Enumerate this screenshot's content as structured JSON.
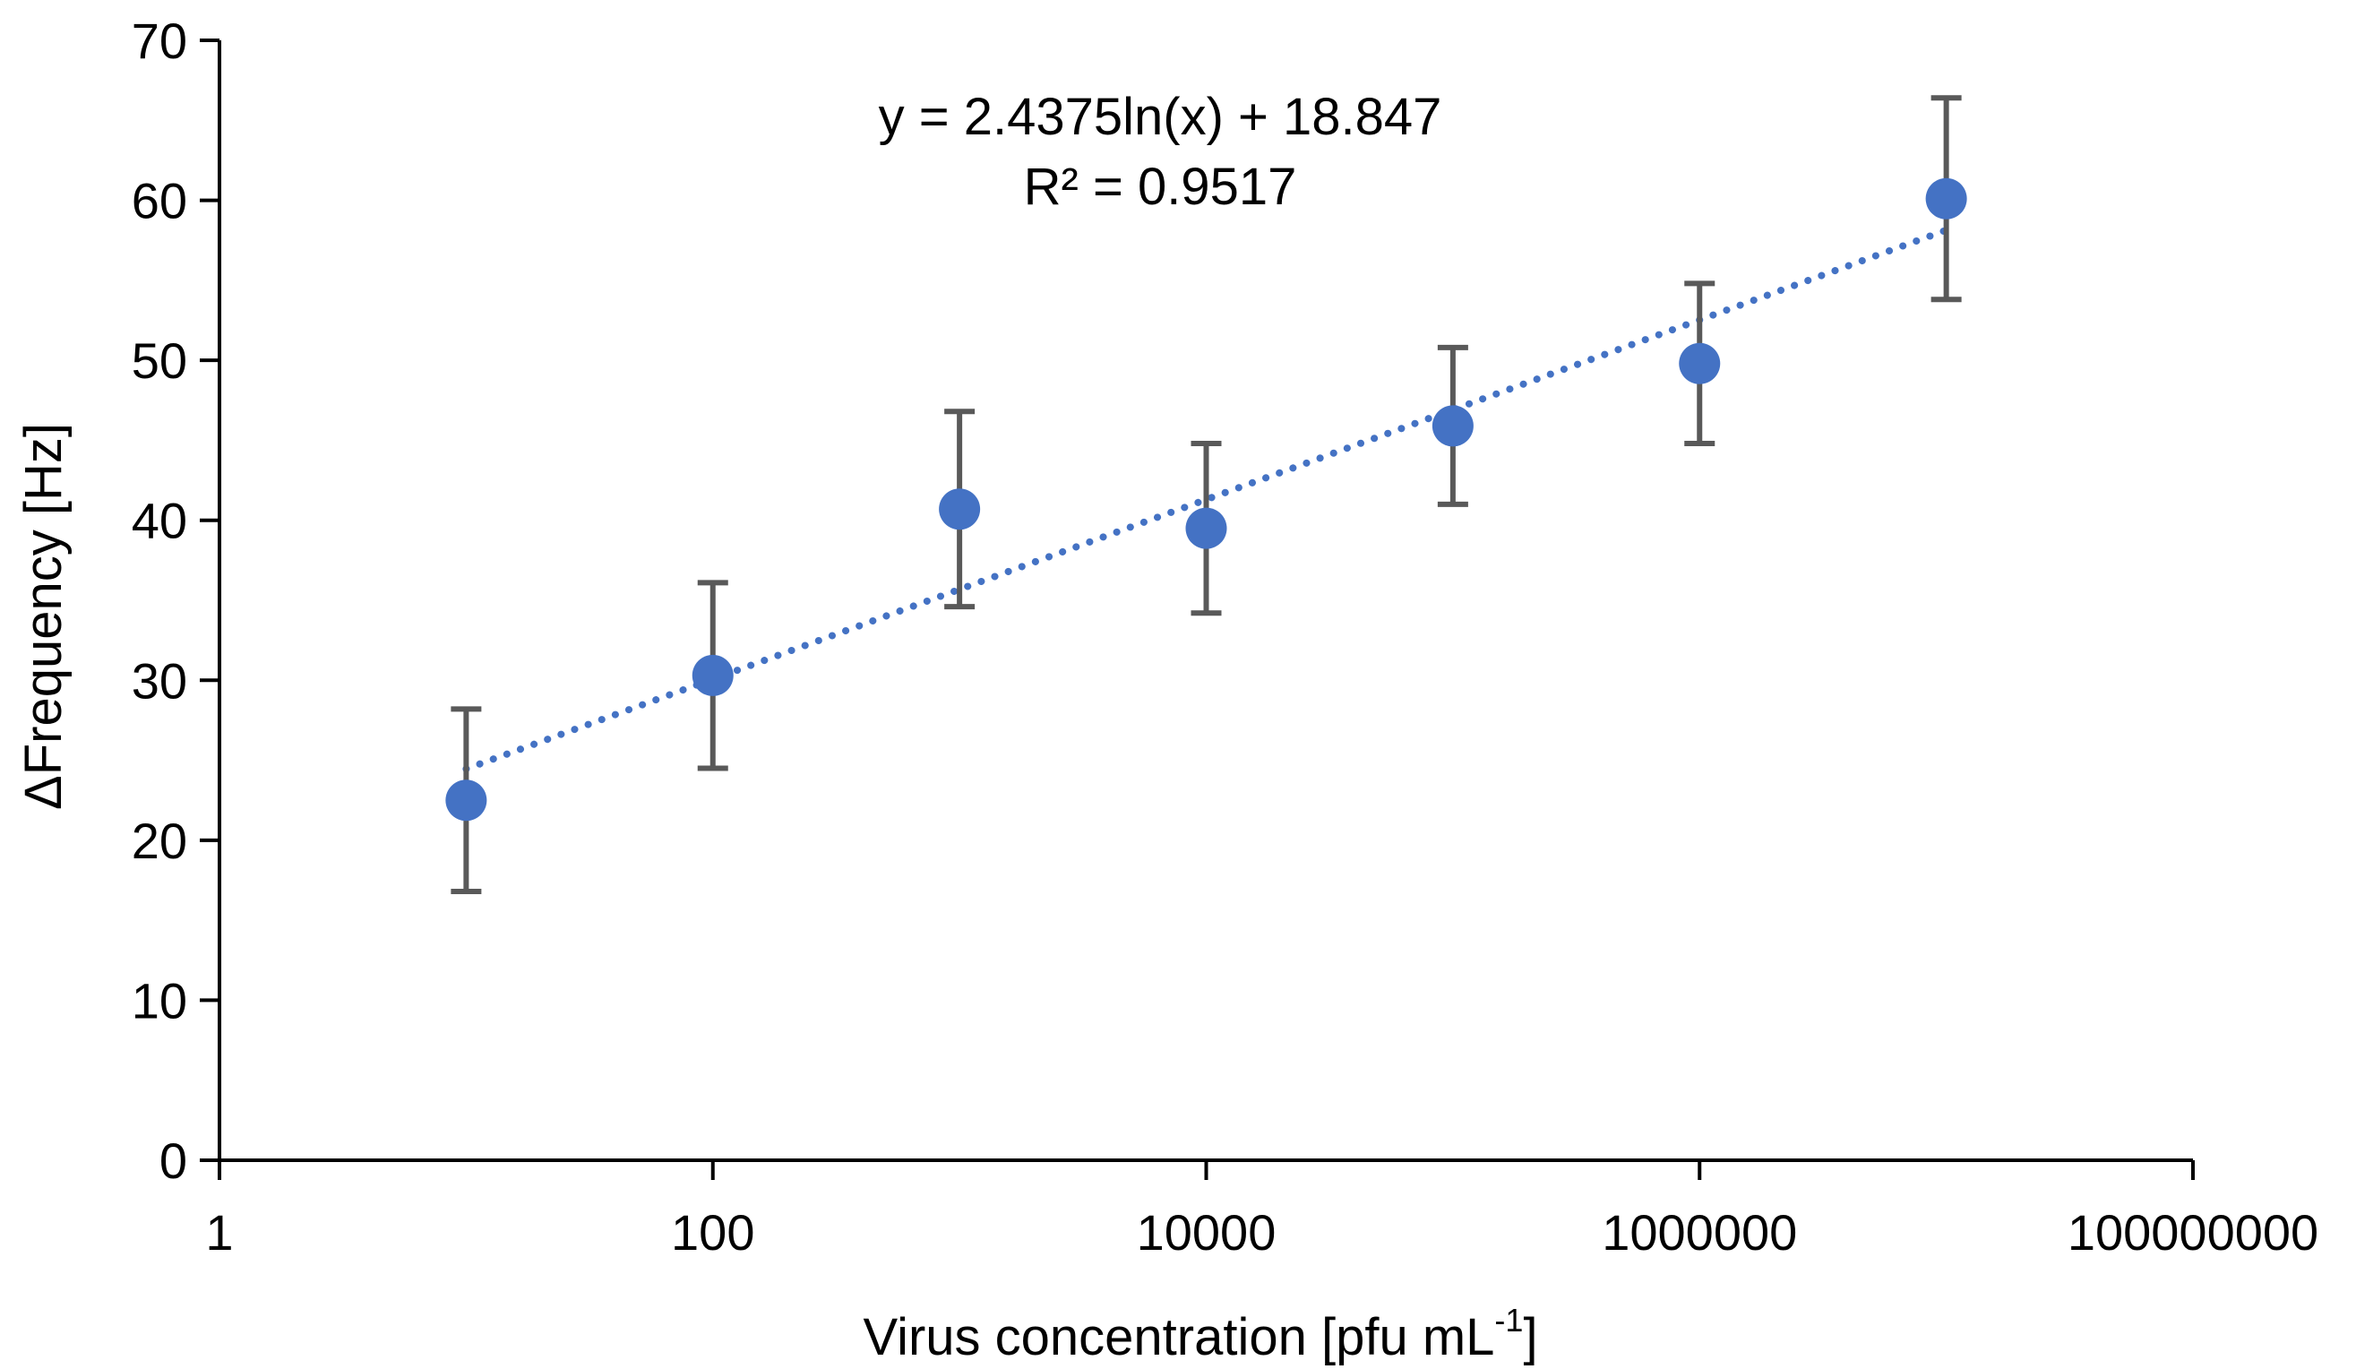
{
  "chart_data": {
    "type": "scatter",
    "title": "",
    "xlabel": "Virus concentration [pfu mL",
    "xlabel_superscript": "-1",
    "xlabel_suffix": "]",
    "ylabel": "ΔFrequency [Hz]",
    "xscale": "log10",
    "xlim": [
      1,
      100000000
    ],
    "ylim": [
      0,
      70
    ],
    "x_ticks": [
      1,
      100,
      10000,
      1000000,
      100000000
    ],
    "x_tick_labels": [
      "1",
      "100",
      "10000",
      "1000000",
      "100000000"
    ],
    "y_ticks": [
      0,
      10,
      20,
      30,
      40,
      50,
      60,
      70
    ],
    "y_tick_labels": [
      "0",
      "10",
      "20",
      "30",
      "40",
      "50",
      "60",
      "70"
    ],
    "grid": false,
    "series": [
      {
        "name": "ΔFrequency",
        "x": [
          10,
          100,
          1000,
          10000,
          100000,
          1000000,
          10000000
        ],
        "y": [
          22.5,
          30.3,
          40.7,
          39.5,
          45.9,
          49.8,
          60.1
        ],
        "error": [
          5.7,
          5.8,
          6.1,
          5.3,
          4.9,
          5.0,
          6.3
        ],
        "color": "#4472C4",
        "error_color": "#595959"
      }
    ],
    "trendline": {
      "type": "logarithmic",
      "a": 2.4375,
      "b": 18.847,
      "x_range": [
        10,
        10000000
      ],
      "color": "#4472C4",
      "equation_text": "y = 2.4375ln(x) + 18.847",
      "r2_text": "R² = 0.9517"
    }
  }
}
